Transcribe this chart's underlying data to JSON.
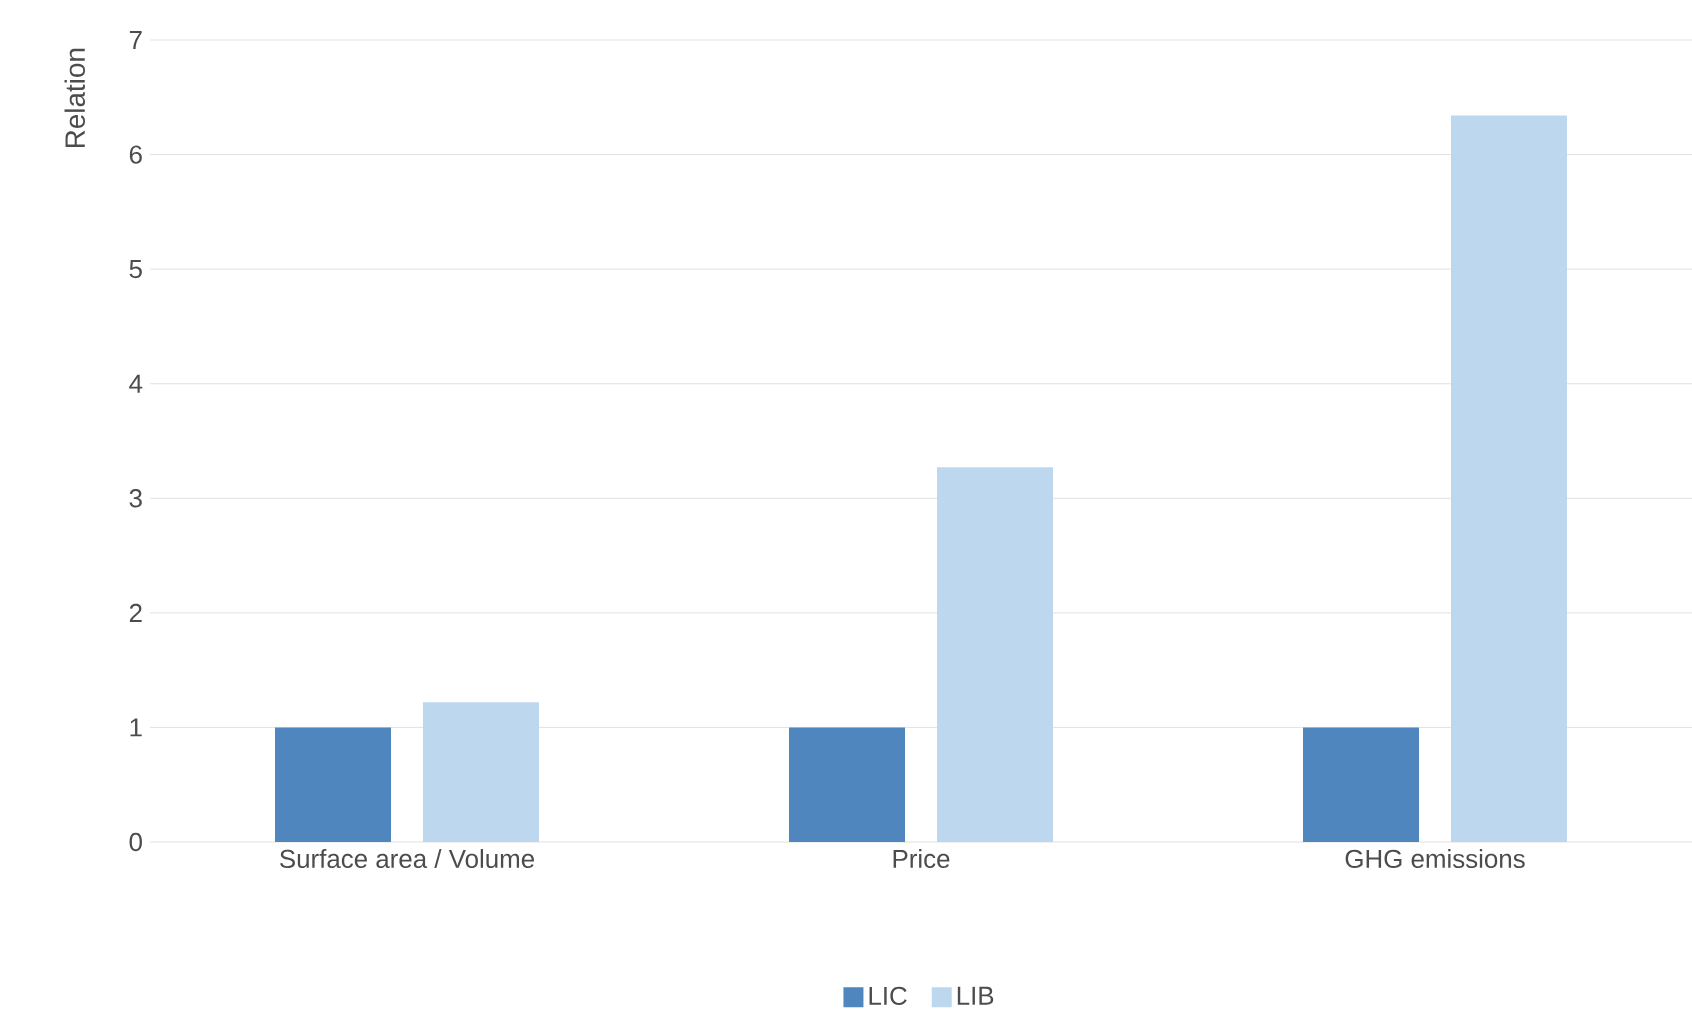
{
  "chart_data": {
    "type": "bar",
    "ylabel": "Relation",
    "categories": [
      "Surface area / Volume",
      "Price",
      "GHG emissions"
    ],
    "series": [
      {
        "name": "LIC",
        "color": "#4f86be",
        "values": [
          1,
          1,
          1
        ]
      },
      {
        "name": "LIB",
        "color": "#bdd7ee",
        "values": [
          1.22,
          3.27,
          6.34
        ]
      }
    ],
    "ylim": [
      0,
      7
    ],
    "yticks": [
      0,
      1,
      2,
      3,
      4,
      5,
      6,
      7
    ],
    "grid": "y",
    "legend": "bottom"
  }
}
